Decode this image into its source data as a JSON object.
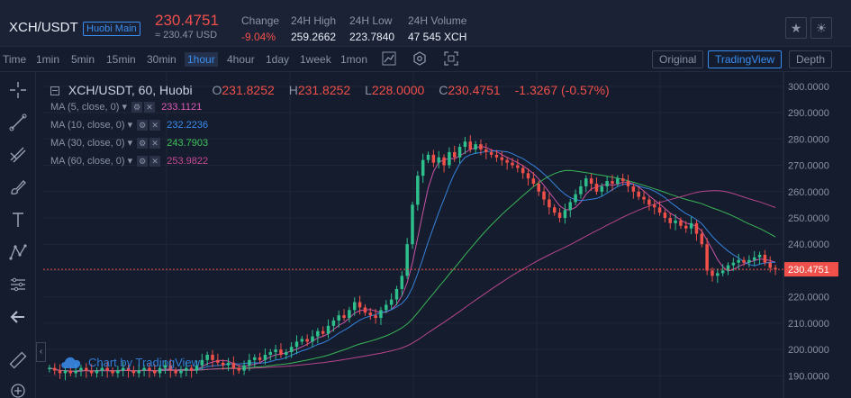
{
  "header": {
    "pair": "XCH/USDT",
    "badge": "Huobi Main",
    "last_price": "230.4751",
    "last_price_cny": "≈ 230.47 USD",
    "stats": [
      {
        "label": "Change",
        "value": "-9.04%",
        "red": true
      },
      {
        "label": "24H High",
        "value": "259.2662",
        "red": false
      },
      {
        "label": "24H Low",
        "value": "223.7840",
        "red": false
      },
      {
        "label": "24H Volume",
        "value": "47 545 XCH",
        "red": false
      }
    ],
    "star_icon": "star-icon",
    "theme_icon": "sun-icon"
  },
  "toolbar": {
    "intervals": [
      "Time",
      "1min",
      "5min",
      "15min",
      "30min",
      "1hour",
      "4hour",
      "1day",
      "1week",
      "1mon"
    ],
    "active_interval": "1hour",
    "views": [
      "Original",
      "TradingView",
      "Depth"
    ],
    "active_view": "TradingView"
  },
  "chart_data": {
    "type": "candlestick",
    "title": "XCH/USDT, 60, Huobi",
    "ohlc": {
      "o_label": "O",
      "o": "231.8252",
      "h_label": "H",
      "h": "231.8252",
      "l_label": "L",
      "l": "228.0000",
      "c_label": "C",
      "c": "230.4751",
      "change": "-1.3267 (-0.57%)"
    },
    "ma": [
      {
        "name": "MA (5, close, 0)",
        "value": "233.1121",
        "color": "#e05ab4"
      },
      {
        "name": "MA (10, close, 0)",
        "value": "232.2236",
        "color": "#3a8ef0"
      },
      {
        "name": "MA (30, close, 0)",
        "value": "243.7903",
        "color": "#3ec55b"
      },
      {
        "name": "MA (60, close, 0)",
        "value": "253.9822",
        "color": "#c84a96"
      }
    ],
    "ylim": [
      185,
      302
    ],
    "y_ticks": [
      "300.0000",
      "290.0000",
      "280.0000",
      "270.0000",
      "260.0000",
      "250.0000",
      "240.0000",
      "230.0000",
      "220.0000",
      "210.0000",
      "200.0000",
      "190.0000"
    ],
    "last_price_label": "230.4751",
    "last_price": 230.4751,
    "close_series": [
      193,
      192,
      191,
      192,
      191,
      192,
      193,
      192,
      191,
      192,
      193,
      192,
      191,
      192,
      193,
      192,
      191,
      192,
      193,
      192,
      191,
      193,
      194,
      192,
      191,
      192,
      193,
      192,
      194,
      196,
      198,
      196,
      195,
      194,
      195,
      193,
      192,
      194,
      196,
      197,
      196,
      198,
      199,
      200,
      198,
      199,
      201,
      203,
      204,
      203,
      205,
      207,
      206,
      209,
      211,
      213,
      212,
      215,
      218,
      216,
      214,
      213,
      212,
      215,
      217,
      219,
      223,
      228,
      240,
      255,
      266,
      272,
      274,
      271,
      273,
      270,
      275,
      273,
      277,
      279,
      276,
      278,
      276,
      275,
      274,
      273,
      272,
      271,
      270,
      269,
      267,
      265,
      263,
      260,
      257,
      254,
      252,
      250,
      253,
      256,
      259,
      262,
      265,
      263,
      260,
      262,
      264,
      263,
      265,
      264,
      262,
      260,
      258,
      257,
      255,
      254,
      252,
      250,
      248,
      249,
      247,
      246,
      248,
      244,
      240,
      230,
      228,
      229,
      230,
      232,
      233,
      234,
      233,
      234,
      235,
      236,
      233,
      231,
      230.4751
    ],
    "watermark": "Chart by TradingView"
  },
  "tools": [
    "crosshair-icon",
    "trendline-icon",
    "fib-icon",
    "brush-icon",
    "text-icon",
    "pattern-icon",
    "measure-icon",
    "back-arrow-icon",
    "ruler-icon",
    "zoom-in-icon"
  ]
}
